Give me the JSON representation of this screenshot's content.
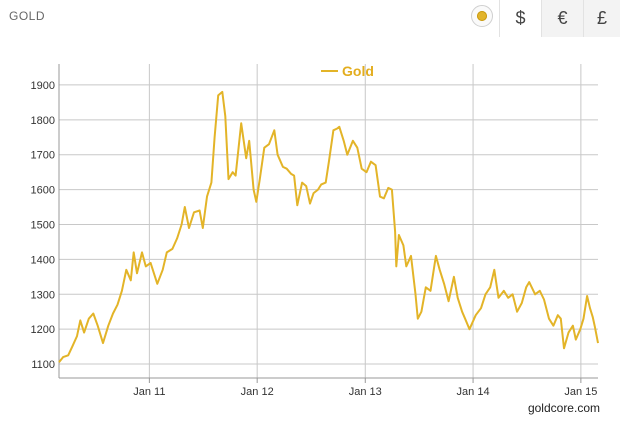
{
  "header": {
    "title": "GOLD"
  },
  "currency_tabs": [
    {
      "symbol": "$",
      "active": true
    },
    {
      "symbol": "€",
      "active": false
    },
    {
      "symbol": "£",
      "active": false
    }
  ],
  "credit": "goldcore.com",
  "colors": {
    "series": "#e3b428",
    "grid": "#c8c8c8",
    "coin": "#e2b42a"
  },
  "chart_data": {
    "type": "line",
    "title": "",
    "xlabel": "",
    "ylabel": "",
    "ylim": [
      1060,
      1960
    ],
    "xlim": [
      "2010-03-01",
      "2015-02-28"
    ],
    "y_ticks": [
      1100,
      1200,
      1300,
      1400,
      1500,
      1600,
      1700,
      1800,
      1900
    ],
    "x_ticks": [
      {
        "label": "Jan 11",
        "date": "2011-01-01"
      },
      {
        "label": "Jan 12",
        "date": "2012-01-01"
      },
      {
        "label": "Jan 13",
        "date": "2013-01-01"
      },
      {
        "label": "Jan 14",
        "date": "2014-01-01"
      },
      {
        "label": "Jan 15",
        "date": "2015-01-01"
      }
    ],
    "grid": true,
    "legend": "top-center",
    "series": [
      {
        "name": "Gold",
        "color": "#e3b428",
        "points": [
          [
            "2010-03-01",
            1105
          ],
          [
            "2010-03-15",
            1120
          ],
          [
            "2010-04-01",
            1125
          ],
          [
            "2010-04-15",
            1150
          ],
          [
            "2010-05-01",
            1180
          ],
          [
            "2010-05-12",
            1225
          ],
          [
            "2010-05-25",
            1190
          ],
          [
            "2010-06-10",
            1230
          ],
          [
            "2010-06-25",
            1245
          ],
          [
            "2010-07-10",
            1210
          ],
          [
            "2010-07-28",
            1160
          ],
          [
            "2010-08-15",
            1210
          ],
          [
            "2010-08-31",
            1245
          ],
          [
            "2010-09-15",
            1270
          ],
          [
            "2010-09-30",
            1310
          ],
          [
            "2010-10-15",
            1370
          ],
          [
            "2010-10-30",
            1340
          ],
          [
            "2010-11-09",
            1420
          ],
          [
            "2010-11-20",
            1360
          ],
          [
            "2010-12-07",
            1420
          ],
          [
            "2010-12-20",
            1380
          ],
          [
            "2011-01-05",
            1390
          ],
          [
            "2011-01-28",
            1330
          ],
          [
            "2011-02-15",
            1370
          ],
          [
            "2011-03-01",
            1420
          ],
          [
            "2011-03-20",
            1430
          ],
          [
            "2011-04-05",
            1460
          ],
          [
            "2011-04-20",
            1500
          ],
          [
            "2011-05-01",
            1550
          ],
          [
            "2011-05-15",
            1490
          ],
          [
            "2011-06-01",
            1535
          ],
          [
            "2011-06-20",
            1540
          ],
          [
            "2011-07-01",
            1490
          ],
          [
            "2011-07-15",
            1580
          ],
          [
            "2011-07-30",
            1620
          ],
          [
            "2011-08-10",
            1750
          ],
          [
            "2011-08-22",
            1870
          ],
          [
            "2011-09-05",
            1880
          ],
          [
            "2011-09-15",
            1810
          ],
          [
            "2011-09-26",
            1630
          ],
          [
            "2011-10-10",
            1650
          ],
          [
            "2011-10-20",
            1640
          ],
          [
            "2011-11-08",
            1790
          ],
          [
            "2011-11-25",
            1690
          ],
          [
            "2011-12-05",
            1740
          ],
          [
            "2011-12-20",
            1600
          ],
          [
            "2011-12-29",
            1565
          ],
          [
            "2012-01-10",
            1630
          ],
          [
            "2012-01-25",
            1720
          ],
          [
            "2012-02-10",
            1730
          ],
          [
            "2012-02-28",
            1770
          ],
          [
            "2012-03-10",
            1700
          ],
          [
            "2012-03-28",
            1665
          ],
          [
            "2012-04-10",
            1660
          ],
          [
            "2012-04-25",
            1645
          ],
          [
            "2012-05-05",
            1640
          ],
          [
            "2012-05-16",
            1555
          ],
          [
            "2012-06-01",
            1620
          ],
          [
            "2012-06-15",
            1610
          ],
          [
            "2012-06-28",
            1560
          ],
          [
            "2012-07-10",
            1590
          ],
          [
            "2012-07-25",
            1600
          ],
          [
            "2012-08-05",
            1615
          ],
          [
            "2012-08-20",
            1620
          ],
          [
            "2012-08-31",
            1680
          ],
          [
            "2012-09-15",
            1770
          ],
          [
            "2012-09-28",
            1775
          ],
          [
            "2012-10-05",
            1780
          ],
          [
            "2012-10-20",
            1740
          ],
          [
            "2012-11-01",
            1700
          ],
          [
            "2012-11-20",
            1740
          ],
          [
            "2012-12-05",
            1720
          ],
          [
            "2012-12-20",
            1660
          ],
          [
            "2013-01-05",
            1650
          ],
          [
            "2013-01-20",
            1680
          ],
          [
            "2013-02-05",
            1670
          ],
          [
            "2013-02-20",
            1580
          ],
          [
            "2013-03-05",
            1575
          ],
          [
            "2013-03-20",
            1605
          ],
          [
            "2013-04-01",
            1600
          ],
          [
            "2013-04-12",
            1480
          ],
          [
            "2013-04-16",
            1380
          ],
          [
            "2013-04-25",
            1470
          ],
          [
            "2013-05-10",
            1440
          ],
          [
            "2013-05-20",
            1380
          ],
          [
            "2013-06-05",
            1410
          ],
          [
            "2013-06-20",
            1300
          ],
          [
            "2013-06-28",
            1230
          ],
          [
            "2013-07-10",
            1250
          ],
          [
            "2013-07-25",
            1320
          ],
          [
            "2013-08-10",
            1310
          ],
          [
            "2013-08-28",
            1410
          ],
          [
            "2013-09-10",
            1370
          ],
          [
            "2013-09-25",
            1330
          ],
          [
            "2013-10-10",
            1280
          ],
          [
            "2013-10-28",
            1350
          ],
          [
            "2013-11-10",
            1290
          ],
          [
            "2013-11-25",
            1250
          ],
          [
            "2013-12-05",
            1230
          ],
          [
            "2013-12-20",
            1200
          ],
          [
            "2014-01-10",
            1240
          ],
          [
            "2014-01-28",
            1260
          ],
          [
            "2014-02-12",
            1300
          ],
          [
            "2014-02-28",
            1320
          ],
          [
            "2014-03-14",
            1370
          ],
          [
            "2014-03-28",
            1290
          ],
          [
            "2014-04-15",
            1310
          ],
          [
            "2014-04-30",
            1290
          ],
          [
            "2014-05-15",
            1300
          ],
          [
            "2014-05-30",
            1250
          ],
          [
            "2014-06-15",
            1275
          ],
          [
            "2014-06-30",
            1320
          ],
          [
            "2014-07-10",
            1335
          ],
          [
            "2014-07-30",
            1300
          ],
          [
            "2014-08-15",
            1310
          ],
          [
            "2014-08-29",
            1285
          ],
          [
            "2014-09-15",
            1230
          ],
          [
            "2014-09-30",
            1210
          ],
          [
            "2014-10-15",
            1240
          ],
          [
            "2014-10-25",
            1230
          ],
          [
            "2014-11-05",
            1145
          ],
          [
            "2014-11-20",
            1190
          ],
          [
            "2014-12-05",
            1210
          ],
          [
            "2014-12-15",
            1170
          ],
          [
            "2014-12-30",
            1200
          ],
          [
            "2015-01-10",
            1230
          ],
          [
            "2015-01-22",
            1295
          ],
          [
            "2015-02-01",
            1260
          ],
          [
            "2015-02-10",
            1235
          ],
          [
            "2015-02-18",
            1205
          ],
          [
            "2015-02-28",
            1160
          ]
        ]
      }
    ]
  }
}
